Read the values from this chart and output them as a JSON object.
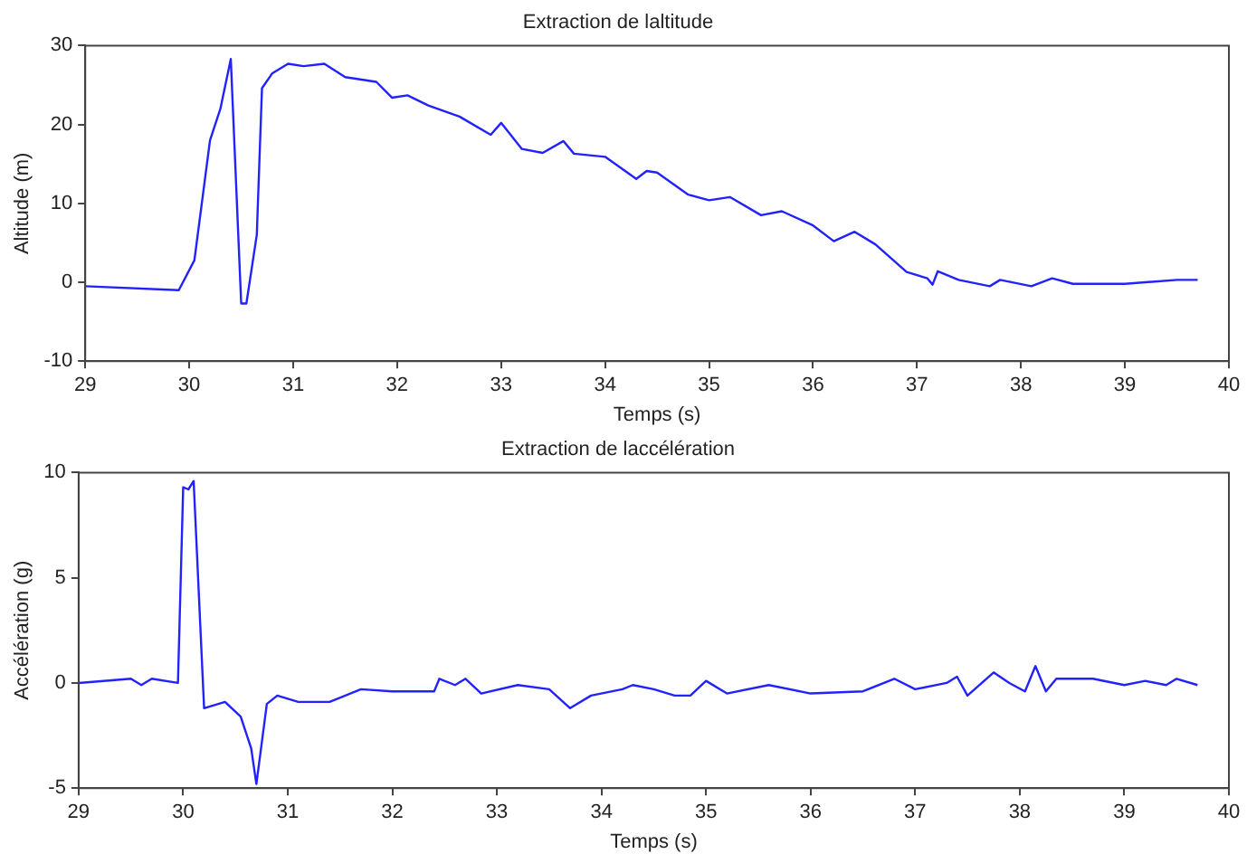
{
  "chart_data": [
    {
      "type": "line",
      "title": "Extraction de laltitude",
      "xlabel": "Temps (s)",
      "ylabel": "Altitude (m)",
      "marker": "none",
      "x": [
        29,
        29.9,
        30.05,
        30.2,
        30.3,
        30.4,
        30.5,
        30.55,
        30.65,
        30.7,
        30.8,
        30.95,
        31.1,
        31.3,
        31.5,
        31.8,
        31.95,
        32.1,
        32.3,
        32.6,
        32.9,
        33.0,
        33.2,
        33.4,
        33.6,
        33.7,
        34.0,
        34.3,
        34.4,
        34.5,
        34.8,
        35.0,
        35.2,
        35.5,
        35.7,
        36.0,
        36.2,
        36.4,
        36.6,
        36.9,
        37.1,
        37.15,
        37.2,
        37.4,
        37.7,
        37.8,
        38.1,
        38.3,
        38.5,
        39.0,
        39.5,
        39.7
      ],
      "series": [
        {
          "color": "#2222ff",
          "values": [
            -0.5,
            -1,
            2.8,
            18,
            22,
            28.3,
            -2.7,
            -2.7,
            6,
            24.6,
            26.5,
            27.7,
            27.4,
            27.7,
            26,
            25.4,
            23.4,
            23.7,
            22.4,
            21,
            18.7,
            20.2,
            16.9,
            16.4,
            17.9,
            16.3,
            15.9,
            13.1,
            14.1,
            13.9,
            11.1,
            10.4,
            10.8,
            8.5,
            9,
            7.2,
            5.2,
            6.4,
            4.8,
            1.3,
            0.5,
            -0.3,
            1.4,
            0.3,
            -0.5,
            0.3,
            -0.5,
            0.5,
            -0.2,
            -0.2,
            0.3,
            0.3
          ]
        }
      ],
      "xlim": [
        29,
        40
      ],
      "xticks": [
        29,
        30,
        31,
        32,
        33,
        34,
        35,
        36,
        37,
        38,
        39,
        40
      ],
      "ylim": [
        -10,
        30
      ],
      "yticks": [
        -10,
        0,
        10,
        20,
        30
      ]
    },
    {
      "type": "line",
      "title": "Extraction de laccélération",
      "xlabel": "Temps (s)",
      "ylabel": "Accélération (g)",
      "marker": "none",
      "x": [
        29,
        29.5,
        29.6,
        29.7,
        29.95,
        30.0,
        30.05,
        30.1,
        30.2,
        30.4,
        30.55,
        30.65,
        30.7,
        30.8,
        30.9,
        31.1,
        31.4,
        31.7,
        32.0,
        32.4,
        32.45,
        32.6,
        32.7,
        32.85,
        33.2,
        33.5,
        33.7,
        33.9,
        34.2,
        34.3,
        34.5,
        34.7,
        34.85,
        35.0,
        35.2,
        35.6,
        36.0,
        36.5,
        36.8,
        37.0,
        37.3,
        37.4,
        37.5,
        37.75,
        37.9,
        38.05,
        38.15,
        38.25,
        38.35,
        38.5,
        38.7,
        39.0,
        39.2,
        39.4,
        39.5,
        39.7
      ],
      "series": [
        {
          "color": "#2222ff",
          "values": [
            0,
            0.2,
            -0.1,
            0.2,
            0,
            9.3,
            9.2,
            9.6,
            -1.2,
            -0.9,
            -1.6,
            -3.1,
            -4.8,
            -1,
            -0.6,
            -0.9,
            -0.9,
            -0.3,
            -0.4,
            -0.4,
            0.2,
            -0.1,
            0.2,
            -0.5,
            -0.1,
            -0.3,
            -1.2,
            -0.6,
            -0.3,
            -0.1,
            -0.3,
            -0.6,
            -0.6,
            0.1,
            -0.5,
            -0.1,
            -0.5,
            -0.4,
            0.2,
            -0.3,
            0,
            0.3,
            -0.6,
            0.5,
            0,
            -0.4,
            0.8,
            -0.4,
            0.2,
            0.2,
            0.2,
            -0.1,
            0.1,
            -0.1,
            0.2,
            -0.1
          ]
        }
      ],
      "xlim": [
        29,
        40
      ],
      "xticks": [
        29,
        30,
        31,
        32,
        33,
        34,
        35,
        36,
        37,
        38,
        39,
        40
      ],
      "ylim": [
        -5,
        10
      ],
      "yticks": [
        -5,
        0,
        5,
        10
      ]
    }
  ]
}
